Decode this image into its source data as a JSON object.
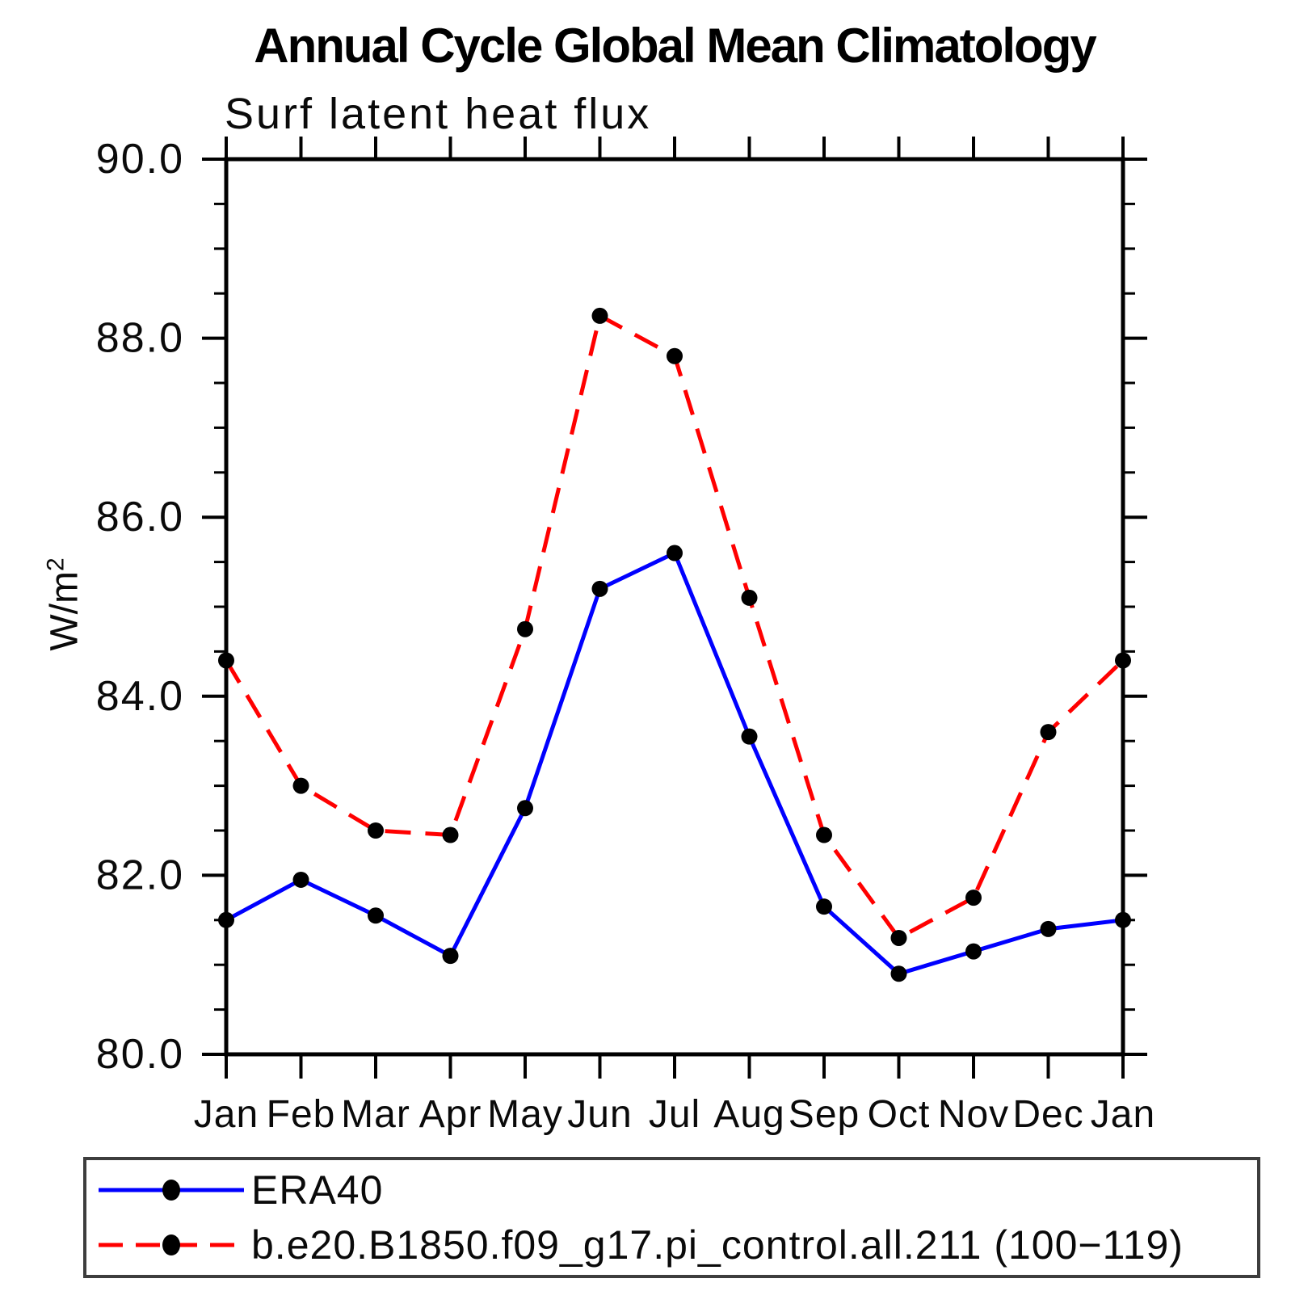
{
  "chart": {
    "title": "Annual Cycle Global Mean Climatology",
    "subtitle": "Surf latent heat flux",
    "ylabel": "W/m²",
    "ylabel_base": "W/m",
    "ylabel_sup": "2"
  },
  "chart_data": {
    "type": "line",
    "title": "Annual Cycle Global Mean Climatology",
    "subtitle": "Surf latent heat flux",
    "xlabel": "",
    "ylabel": "W/m²",
    "categories": [
      "Jan",
      "Feb",
      "Mar",
      "Apr",
      "May",
      "Jun",
      "Jul",
      "Aug",
      "Sep",
      "Oct",
      "Nov",
      "Dec",
      "Jan"
    ],
    "ylim": [
      80.0,
      90.0
    ],
    "ymajor_ticks": [
      80.0,
      82.0,
      84.0,
      86.0,
      88.0,
      90.0
    ],
    "ymajor_tick_labels": [
      "80.0",
      "82.0",
      "84.0",
      "86.0",
      "88.0",
      "90.0"
    ],
    "yminor_step": 0.5,
    "grid": false,
    "legend_position": "bottom",
    "marker_color": "#000000",
    "series": [
      {
        "id": "era40",
        "name": "ERA40",
        "color": "#0000ff",
        "style": "solid",
        "marker": "filled-circle",
        "values": [
          81.5,
          81.95,
          81.55,
          81.1,
          82.75,
          85.2,
          85.6,
          83.55,
          81.65,
          80.9,
          81.15,
          81.4,
          81.5
        ]
      },
      {
        "id": "model",
        "name": "b.e20.B1850.f09_g17.pi_control.all.211 (100−119)",
        "color": "#ff0000",
        "style": "dashed",
        "marker": "filled-circle",
        "values": [
          84.4,
          83.0,
          82.5,
          82.45,
          84.75,
          88.25,
          87.8,
          85.1,
          82.45,
          81.3,
          81.75,
          83.6,
          84.4
        ]
      }
    ]
  }
}
